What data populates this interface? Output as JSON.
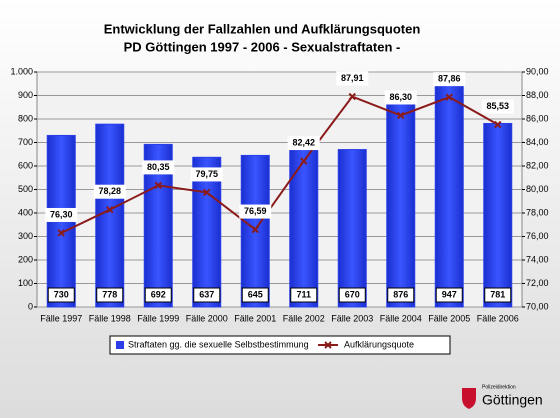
{
  "chart_data": {
    "type": "combo",
    "title": "Entwicklung der Fallzahlen und Aufklärungsquoten",
    "subtitle": "PD Göttingen 1997 - 2006 - Sexualstraftaten -",
    "categories": [
      "Fälle 1997",
      "Fälle 1998",
      "Fälle 1999",
      "Fälle 2000",
      "Fälle 2001",
      "Fälle 2002",
      "Fälle 2003",
      "Fälle 2004",
      "Fälle 2005",
      "Fälle 2006"
    ],
    "series": [
      {
        "name": "Straftaten gg. die sexuelle Selbstbestimmung",
        "type": "bar",
        "color": "#2a3fe8",
        "values": [
          730,
          778,
          692,
          637,
          645,
          711,
          670,
          876,
          947,
          781
        ]
      },
      {
        "name": "Aufklärungsquote",
        "type": "line",
        "axis": "y2",
        "color": "#8b1a1a",
        "values": [
          76.3,
          78.28,
          80.35,
          79.75,
          76.59,
          82.42,
          87.91,
          86.3,
          87.86,
          85.53
        ],
        "value_labels": [
          "76,30",
          "78,28",
          "80,35",
          "79,75",
          "76,59",
          "82,42",
          "87,91",
          "86,30",
          "87,86",
          "85,53"
        ]
      }
    ],
    "ylim": [
      0,
      1000
    ],
    "yticks": [
      0,
      100,
      200,
      300,
      400,
      500,
      600,
      700,
      800,
      900,
      {
        "value": 1000,
        "label": "1.000"
      }
    ],
    "y2lim": [
      70,
      90
    ],
    "y2ticks": [
      {
        "value": 70,
        "label": "70,00"
      },
      {
        "value": 72,
        "label": "72,00"
      },
      {
        "value": 74,
        "label": "74,00"
      },
      {
        "value": 76,
        "label": "76,00"
      },
      {
        "value": 78,
        "label": "78,00"
      },
      {
        "value": 80,
        "label": "80,00"
      },
      {
        "value": 82,
        "label": "82,00"
      },
      {
        "value": 84,
        "label": "84,00"
      },
      {
        "value": 86,
        "label": "86,00"
      },
      {
        "value": 88,
        "label": "88,00"
      },
      {
        "value": 90,
        "label": "90,00"
      }
    ],
    "grid": true
  },
  "logo": {
    "caption": "Polizeidirektion",
    "name": "Göttingen"
  }
}
